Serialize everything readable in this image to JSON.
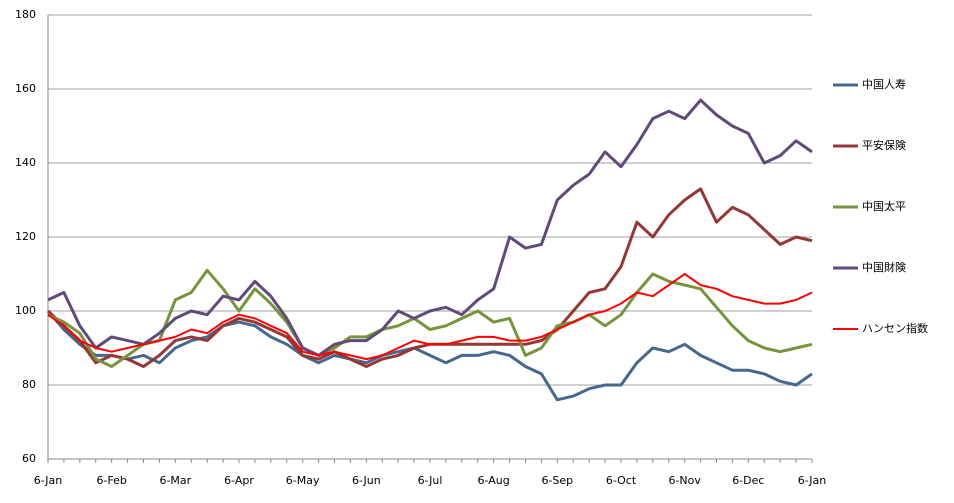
{
  "chart_data": {
    "type": "line",
    "categories": [
      "6-Jan",
      null,
      null,
      null,
      "6-Feb",
      null,
      null,
      null,
      "6-Mar",
      null,
      null,
      null,
      "6-Apr",
      null,
      null,
      null,
      "6-May",
      null,
      null,
      null,
      "6-Jun",
      null,
      null,
      null,
      "6-Jul",
      null,
      null,
      null,
      "6-Aug",
      null,
      null,
      null,
      "6-Sep",
      null,
      null,
      null,
      "6-Oct",
      null,
      null,
      null,
      "6-Nov",
      null,
      null,
      null,
      "6-Dec",
      null,
      null,
      null,
      "6-Jan"
    ],
    "series": [
      {
        "name": "中国人寿",
        "color": "#44688f",
        "values": [
          100,
          95,
          91,
          88,
          88,
          87,
          88,
          86,
          90,
          92,
          93,
          96,
          97,
          96,
          93,
          91,
          88,
          86,
          88,
          87,
          86,
          88,
          89,
          90,
          88,
          86,
          88,
          88,
          89,
          88,
          85,
          83,
          76,
          77,
          79,
          80,
          80,
          86,
          90,
          89,
          91,
          88,
          86,
          84,
          84,
          83,
          81,
          80,
          83
        ]
      },
      {
        "name": "平安保険",
        "color": "#953735",
        "values": [
          100,
          96,
          92,
          86,
          88,
          87,
          85,
          88,
          92,
          93,
          92,
          96,
          98,
          97,
          95,
          93,
          88,
          87,
          89,
          87,
          85,
          87,
          88,
          90,
          91,
          91,
          91,
          91,
          91,
          91,
          91,
          92,
          95,
          100,
          105,
          106,
          112,
          124,
          120,
          126,
          130,
          133,
          124,
          128,
          126,
          122,
          118,
          120,
          119
        ]
      },
      {
        "name": "中国太平",
        "color": "#77933c",
        "values": [
          99,
          97,
          94,
          87,
          85,
          88,
          91,
          92,
          103,
          105,
          111,
          106,
          100,
          106,
          102,
          97,
          90,
          88,
          90,
          93,
          93,
          95,
          96,
          98,
          95,
          96,
          98,
          100,
          97,
          98,
          88,
          90,
          96,
          97,
          99,
          96,
          99,
          105,
          110,
          108,
          107,
          106,
          101,
          96,
          92,
          90,
          89,
          90,
          91
        ]
      },
      {
        "name": "中国財険",
        "color": "#604a7b",
        "values": [
          103,
          105,
          96,
          90,
          93,
          92,
          91,
          94,
          98,
          100,
          99,
          104,
          103,
          108,
          104,
          98,
          90,
          88,
          91,
          92,
          92,
          95,
          100,
          98,
          100,
          101,
          99,
          103,
          106,
          120,
          117,
          118,
          130,
          134,
          137,
          143,
          139,
          145,
          152,
          154,
          152,
          157,
          153,
          150,
          148,
          140,
          142,
          146,
          143
        ]
      },
      {
        "name": "ハンセン指数",
        "color": "#ff0000",
        "values": [
          99,
          96,
          92,
          90,
          89,
          90,
          91,
          92,
          93,
          95,
          94,
          97,
          99,
          98,
          96,
          94,
          89,
          88,
          89,
          88,
          87,
          88,
          90,
          92,
          91,
          91,
          92,
          93,
          93,
          92,
          92,
          93,
          95,
          97,
          99,
          100,
          102,
          105,
          104,
          107,
          110,
          107,
          106,
          104,
          103,
          102,
          102,
          103,
          105
        ]
      }
    ],
    "ylim": [
      60,
      180
    ],
    "yticks": [
      60,
      80,
      100,
      120,
      140,
      160,
      180
    ],
    "grid": true,
    "legend": "right"
  }
}
